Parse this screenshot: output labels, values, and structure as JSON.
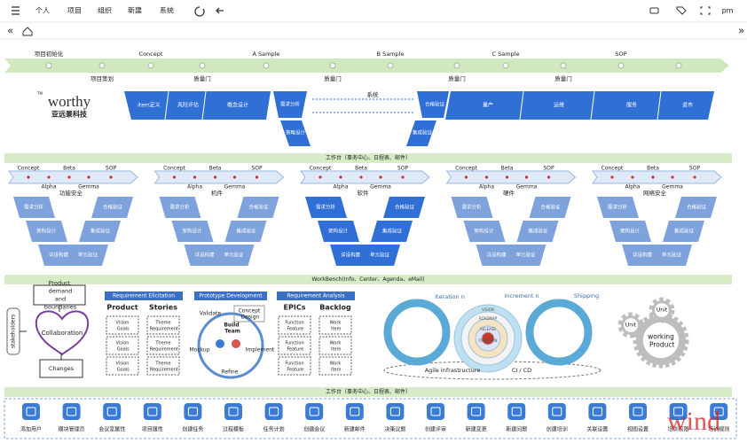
{
  "nav": {
    "items": [
      "个人",
      "项目",
      "组织",
      "新建",
      "系统"
    ],
    "user": "pm"
  },
  "timeline": {
    "milestones": [
      "项目初始化",
      "Concept",
      "A Sample",
      "B Sample",
      "C Sample",
      "SOP"
    ],
    "gates": [
      "项目策划",
      "质量门",
      "质量门",
      "质量门",
      "质量门"
    ]
  },
  "logo": {
    "tm": "TM",
    "name": "worthy",
    "subtitle": "亚远景科技"
  },
  "process": {
    "concept": [
      "item定义",
      "风险评估",
      "概念设计"
    ],
    "v_left": [
      "需求分析",
      "策略设计"
    ],
    "system": "系统",
    "v_right": [
      "合格验证",
      "集成验证"
    ],
    "production": [
      "量产",
      "运维",
      "服务",
      "退市"
    ]
  },
  "bars": [
    "工作台（事务中心、日程表、邮件）",
    "WorkBench(Info、Center、Agenda、eMail)",
    "工作台（事务中心、日程表、邮件）"
  ],
  "v_models": {
    "phases": [
      "Concept",
      "Beta",
      "SOP"
    ],
    "subphases": [
      "Alpha",
      "Gemma"
    ],
    "left": [
      "需求分析",
      "架构设计",
      "详设构建"
    ],
    "right": [
      "合格验证",
      "集成验证",
      "单元验证"
    ],
    "titles": [
      "功能安全",
      "机件",
      "软件",
      "硬件",
      "网络安全"
    ]
  },
  "agile": {
    "demand": "Product demand and boundaries",
    "collaboration": "Collaboration",
    "changes": "Changes",
    "stakeholders": "stakeholders",
    "elicitation": {
      "title": "Requirement Elicitation",
      "columns": [
        "Product",
        "Stories"
      ],
      "cells": [
        [
          "Vision Goals",
          "Theme Requirement"
        ],
        [
          "Vision Goals",
          "Theme Requirement"
        ],
        [
          "Vision Goals",
          "Theme Requirement"
        ]
      ]
    },
    "prototype": {
      "title": "Prototype Development",
      "steps": [
        "Validate",
        "Concept Design",
        "Build Team",
        "Mockup",
        "Implement",
        "Refine"
      ]
    },
    "analysis": {
      "title": "Requirement Analysis",
      "columns": [
        "EPICs",
        "Backlog"
      ],
      "cells": [
        [
          "Function Feature",
          "Work Item"
        ],
        [
          "Function Feature",
          "Work Item"
        ],
        [
          "Function Feature",
          "Work Item"
        ]
      ]
    },
    "loops": {
      "labels": [
        "Iteration n",
        "Increment n",
        "Shipping"
      ],
      "inner": [
        "VISION",
        "ROADMAP",
        "RELEASE",
        "ITERATION"
      ],
      "infrastructure": "Agile infrastructure",
      "cicd": "CI / CD"
    },
    "product": {
      "units": [
        "Unit",
        "Unit"
      ],
      "label": "working Product"
    }
  },
  "toolbar": [
    "添加用户",
    "模块管理员",
    "会议室属性",
    "项目属性",
    "创建任务",
    "过程模板",
    "任务计划",
    "创建会议",
    "新建邮件",
    "决策议题",
    "创建评审",
    "新建变更",
    "新建问题",
    "创建培训",
    "关联设置",
    "视图设置",
    "培训权限",
    "培训规则"
  ],
  "watermark": "wind"
}
